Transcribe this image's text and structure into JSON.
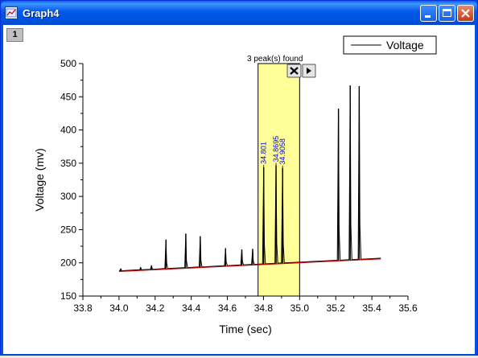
{
  "window": {
    "title": "Graph4",
    "layer_label": "1"
  },
  "chart_data": {
    "type": "line",
    "xlabel": "Time (sec)",
    "ylabel": "Voltage (mv)",
    "xlim": [
      33.8,
      35.6
    ],
    "ylim": [
      150,
      500
    ],
    "x_ticks": [
      "33.8",
      "34.0",
      "34.2",
      "34.4",
      "34.6",
      "34.8",
      "35.0",
      "35.2",
      "35.4",
      "35.6"
    ],
    "y_ticks": [
      "150",
      "200",
      "250",
      "300",
      "350",
      "400",
      "450",
      "500"
    ],
    "legend": {
      "label": "Voltage",
      "position": "top-right"
    },
    "baseline": {
      "x": [
        34.0,
        35.45
      ],
      "y": [
        187,
        206
      ],
      "color": "#cc0000"
    },
    "series": [
      {
        "name": "Voltage",
        "color": "#000000",
        "peaks": [
          {
            "x": 34.01,
            "y": 191
          },
          {
            "x": 34.12,
            "y": 193
          },
          {
            "x": 34.18,
            "y": 196
          },
          {
            "x": 34.26,
            "y": 235
          },
          {
            "x": 34.37,
            "y": 244
          },
          {
            "x": 34.45,
            "y": 240
          },
          {
            "x": 34.59,
            "y": 222
          },
          {
            "x": 34.68,
            "y": 220
          },
          {
            "x": 34.74,
            "y": 221
          },
          {
            "x": 34.801,
            "y": 344
          },
          {
            "x": 34.8695,
            "y": 347
          },
          {
            "x": 34.9058,
            "y": 343
          },
          {
            "x": 35.215,
            "y": 432
          },
          {
            "x": 35.28,
            "y": 467
          },
          {
            "x": 35.33,
            "y": 466
          }
        ]
      }
    ],
    "peak_labels": [
      "34.801",
      "34.8695",
      "34.9058"
    ],
    "roi": {
      "x": [
        34.77,
        35.0
      ],
      "color": "#ffff99",
      "label": "3 peak(s) found"
    }
  },
  "colors": {
    "titlebar": "#0054e3",
    "roi_fill": "#ffff99",
    "peak_label": "#0000cc",
    "baseline": "#cc0000"
  },
  "icons": {
    "roi_close": "close-icon",
    "roi_next": "arrow-right-icon"
  }
}
